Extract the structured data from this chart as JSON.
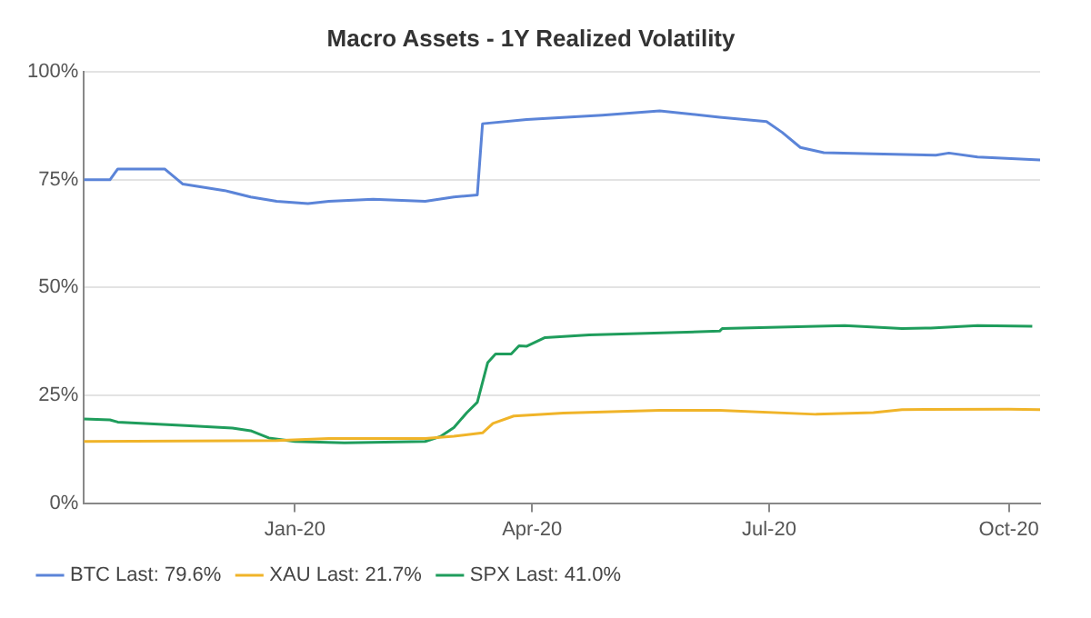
{
  "chart_data": {
    "type": "line",
    "title": "Macro Assets - 1Y Realized Volatility",
    "xlim": [
      "2019-10-12",
      "2020-10-13"
    ],
    "xticks": [
      {
        "value": "2020-01-01",
        "label": "Jan-20"
      },
      {
        "value": "2020-04-01",
        "label": "Apr-20"
      },
      {
        "value": "2020-07-01",
        "label": "Jul-20"
      },
      {
        "value": "2020-10-01",
        "label": "Oct-20"
      }
    ],
    "ylim": [
      0,
      100
    ],
    "yticks": [
      {
        "value": 0,
        "label": "0%"
      },
      {
        "value": 25,
        "label": "25%"
      },
      {
        "value": 50,
        "label": "50%"
      },
      {
        "value": 75,
        "label": "75%"
      },
      {
        "value": 100,
        "label": "100%"
      }
    ],
    "grid": "y",
    "legend": "bottom",
    "marker": "none",
    "line_style": "solid",
    "series": [
      {
        "name": "BTC Last: 79.6%",
        "color": "#5b84d8",
        "x": [
          "2019-10-12",
          "2019-10-22",
          "2019-10-25",
          "2019-11-12",
          "2019-11-19",
          "2019-12-05",
          "2019-12-15",
          "2019-12-25",
          "2020-01-06",
          "2020-01-14",
          "2020-01-31",
          "2020-02-20",
          "2020-03-02",
          "2020-03-11",
          "2020-03-13",
          "2020-03-30",
          "2020-04-28",
          "2020-05-20",
          "2020-06-12",
          "2020-06-30",
          "2020-07-06",
          "2020-07-13",
          "2020-07-22",
          "2020-08-10",
          "2020-09-03",
          "2020-09-08",
          "2020-09-19",
          "2020-10-13"
        ],
        "values": [
          75,
          75,
          77.5,
          77.5,
          74,
          72.5,
          71,
          70,
          69.5,
          70,
          70.5,
          70,
          71,
          71.5,
          88,
          89,
          90,
          91,
          89.5,
          88.5,
          86,
          82.5,
          81.3,
          81,
          80.7,
          81.2,
          80.3,
          79.6
        ]
      },
      {
        "name": "XAU Last: 21.7%",
        "color": "#f0b429",
        "x": [
          "2019-10-12",
          "2019-12-25",
          "2020-01-14",
          "2020-02-20",
          "2020-03-02",
          "2020-03-13",
          "2020-03-17",
          "2020-03-25",
          "2020-04-13",
          "2020-05-20",
          "2020-06-12",
          "2020-07-19",
          "2020-08-10",
          "2020-08-21",
          "2020-10-01",
          "2020-10-13"
        ],
        "values": [
          14.3,
          14.5,
          15,
          15,
          15.5,
          16.3,
          18.5,
          20.2,
          20.9,
          21.5,
          21.5,
          20.6,
          21,
          21.7,
          21.8,
          21.7
        ]
      },
      {
        "name": "SPX Last: 41.0%",
        "color": "#1f9d5c",
        "x": [
          "2019-10-12",
          "2019-10-22",
          "2019-10-25",
          "2019-11-20",
          "2019-12-08",
          "2019-12-15",
          "2019-12-22",
          "2020-01-01",
          "2020-01-20",
          "2020-02-20",
          "2020-02-26",
          "2020-03-02",
          "2020-03-07",
          "2020-03-11",
          "2020-03-15",
          "2020-03-18",
          "2020-03-24",
          "2020-03-27",
          "2020-03-30",
          "2020-04-06",
          "2020-04-23",
          "2020-06-12",
          "2020-06-13",
          "2020-07-30",
          "2020-08-21",
          "2020-09-01",
          "2020-09-19",
          "2020-10-10"
        ],
        "values": [
          19.5,
          19.3,
          18.8,
          18,
          17.4,
          16.8,
          15.1,
          14.3,
          14,
          14.3,
          15.5,
          17.5,
          21,
          23.4,
          32.6,
          34.6,
          34.6,
          36.5,
          36.4,
          38.4,
          39,
          39.9,
          40.5,
          41.2,
          40.5,
          40.6,
          41.2,
          41
        ]
      }
    ]
  }
}
